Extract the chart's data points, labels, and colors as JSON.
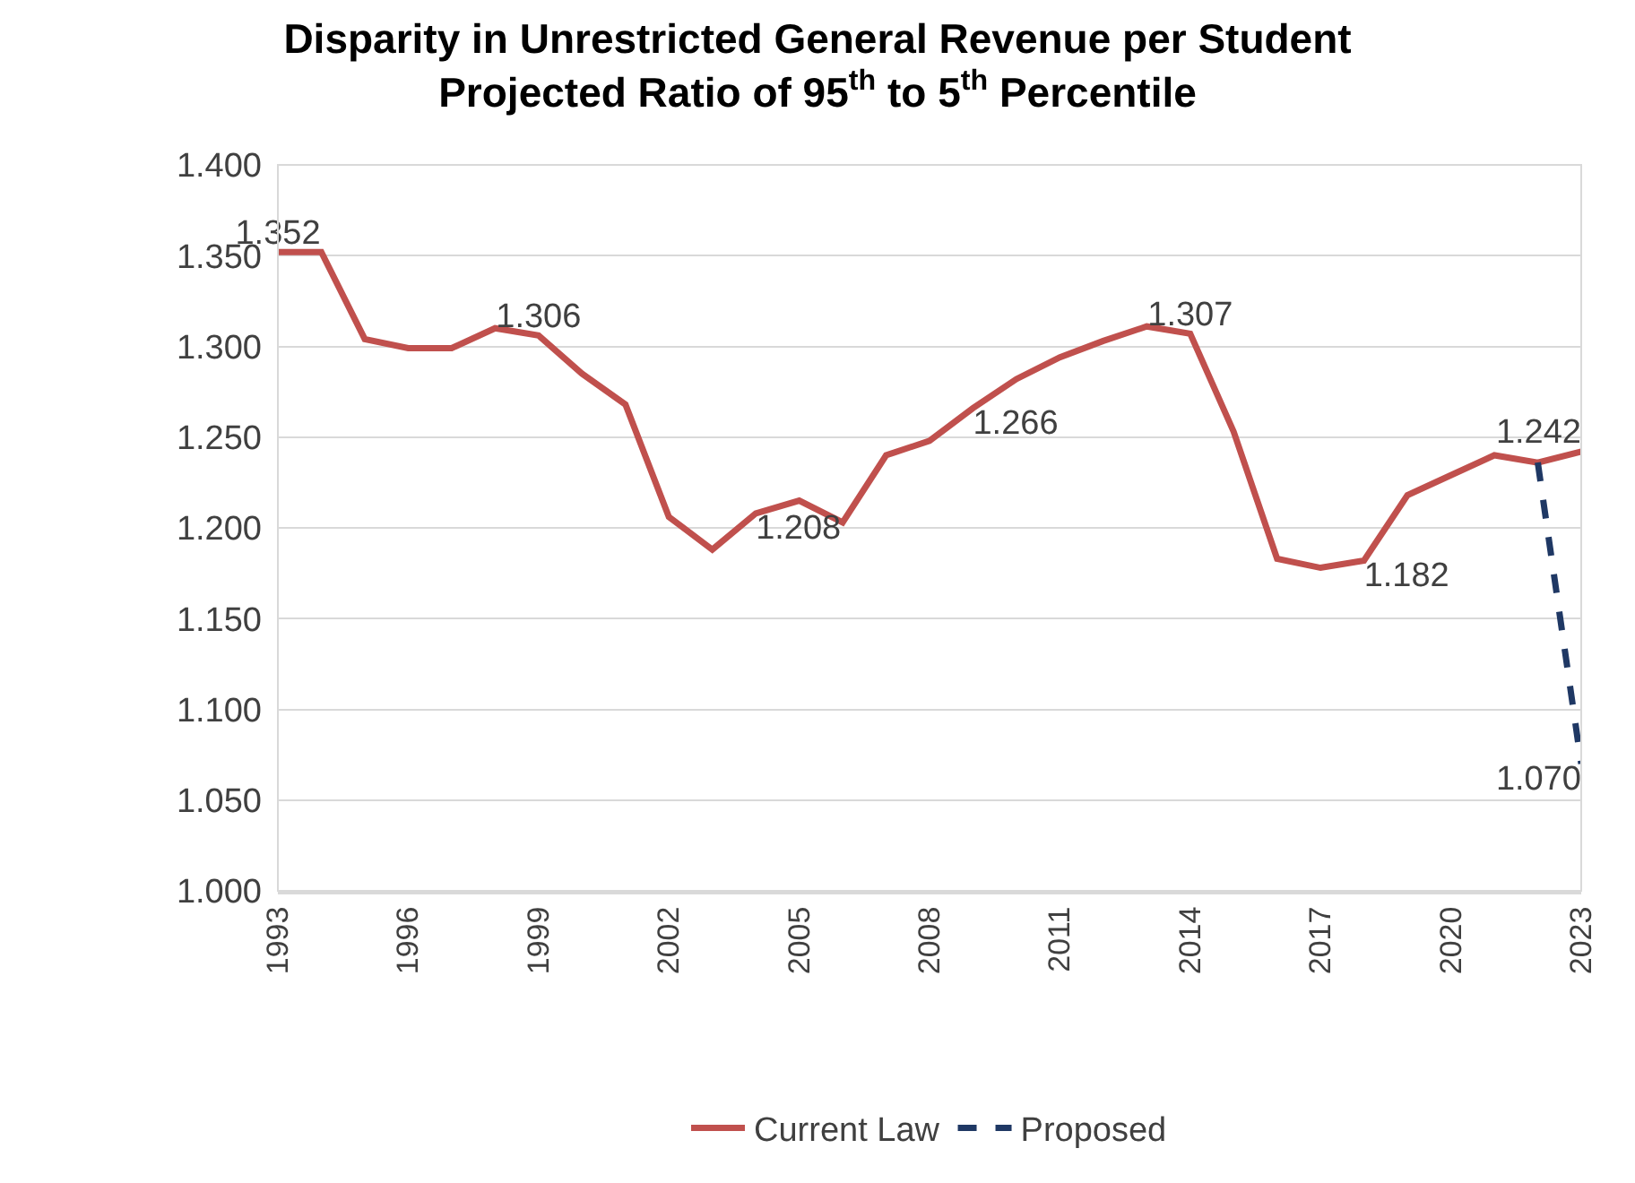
{
  "chart_data": {
    "type": "line",
    "title": "Disparity in Unrestricted General Revenue per Student\nProjected Ratio of 95$^{th}$ to 5$^{th}$ Percentile",
    "xlim": [
      1993,
      2023
    ],
    "xticks": [
      1993,
      1996,
      1999,
      2002,
      2005,
      2008,
      2011,
      2014,
      2017,
      2020,
      2023
    ],
    "ylim": [
      1.0,
      1.4
    ],
    "yticks": [
      {
        "value": 1.0,
        "label": "1.000"
      },
      {
        "value": 1.05,
        "label": "1.050"
      },
      {
        "value": 1.1,
        "label": "1.100"
      },
      {
        "value": 1.15,
        "label": "1.150"
      },
      {
        "value": 1.2,
        "label": "1.200"
      },
      {
        "value": 1.25,
        "label": "1.250"
      },
      {
        "value": 1.3,
        "label": "1.300"
      },
      {
        "value": 1.35,
        "label": "1.350"
      },
      {
        "value": 1.4,
        "label": "1.400"
      }
    ],
    "grid": "y",
    "legend": "bottom",
    "marker": "none",
    "series": [
      {
        "name": "Current Law",
        "color": "#c0504d",
        "line_style": "solid",
        "x": [
          1993,
          1994,
          1995,
          1996,
          1997,
          1998,
          1999,
          2000,
          2001,
          2002,
          2003,
          2004,
          2005,
          2006,
          2007,
          2008,
          2009,
          2010,
          2011,
          2012,
          2013,
          2014,
          2015,
          2016,
          2017,
          2018,
          2019,
          2020,
          2021,
          2022,
          2023
        ],
        "values": [
          1.352,
          1.352,
          1.304,
          1.299,
          1.299,
          1.31,
          1.306,
          1.285,
          1.268,
          1.206,
          1.188,
          1.208,
          1.215,
          1.203,
          1.24,
          1.248,
          1.266,
          1.282,
          1.294,
          1.303,
          1.311,
          1.307,
          1.253,
          1.183,
          1.178,
          1.182,
          1.218,
          1.229,
          1.24,
          1.236,
          1.242
        ],
        "value_labels": [
          "1.352",
          null,
          null,
          null,
          null,
          null,
          "1.306",
          null,
          null,
          null,
          null,
          "1.208",
          null,
          null,
          null,
          null,
          "1.266",
          null,
          null,
          null,
          null,
          "1.307",
          null,
          null,
          null,
          "1.182",
          null,
          null,
          null,
          null,
          "1.242"
        ]
      },
      {
        "name": "Proposed",
        "color": "#1f3864",
        "line_style": "dashed",
        "x": [
          2022,
          2023
        ],
        "values": [
          1.236,
          1.07
        ],
        "value_labels": [
          null,
          "1.070"
        ]
      }
    ]
  }
}
